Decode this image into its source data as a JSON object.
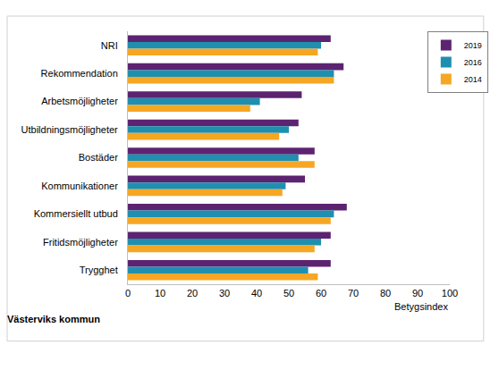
{
  "chart_data": {
    "type": "bar",
    "orientation": "horizontal",
    "categories": [
      "NRI",
      "Rekommendation",
      "Arbetsmöjligheter",
      "Utbildningsmöjligheter",
      "Bostäder",
      "Kommunikationer",
      "Kommersiellt utbud",
      "Fritidsmöjligheter",
      "Trygghet"
    ],
    "series": [
      {
        "name": "2019",
        "color": "#5c2371",
        "values": [
          63,
          67,
          54,
          53,
          58,
          55,
          68,
          63,
          63
        ]
      },
      {
        "name": "2016",
        "color": "#1f8fb0",
        "values": [
          60,
          64,
          41,
          50,
          53,
          49,
          64,
          60,
          56
        ]
      },
      {
        "name": "2014",
        "color": "#f5a623",
        "values": [
          59,
          64,
          38,
          47,
          58,
          48,
          63,
          58,
          59
        ]
      }
    ],
    "x_label": "Betygsindex",
    "annotations": [
      "Västerviks kommun"
    ],
    "xlim": [
      0,
      100
    ],
    "xticks": [
      0,
      10,
      20,
      30,
      40,
      50,
      60,
      70,
      80,
      90,
      100
    ],
    "grid": false,
    "legend": "top-right"
  }
}
